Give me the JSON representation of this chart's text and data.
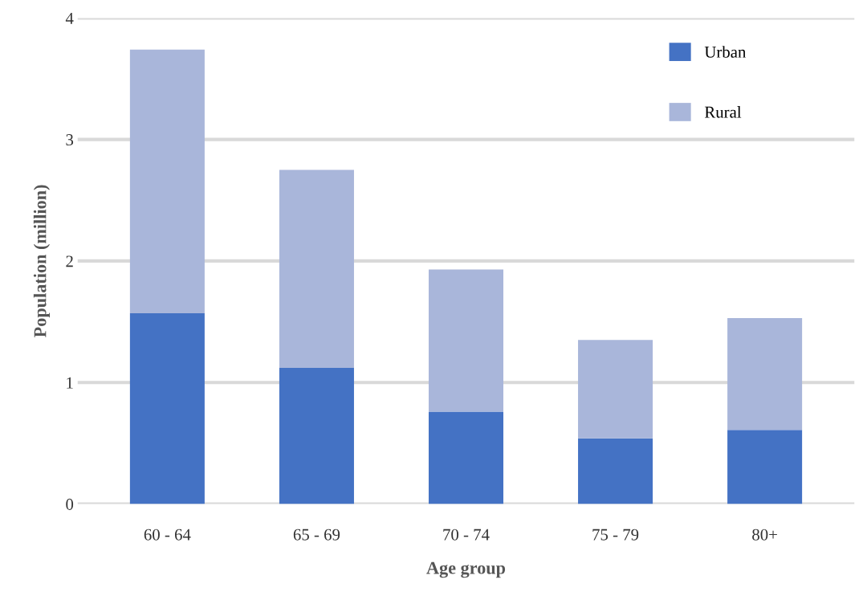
{
  "chart_data": {
    "type": "bar",
    "xlabel": "Age group",
    "ylabel": "Population (million)",
    "categories": [
      "60 - 64",
      "65 - 69",
      "70 - 74",
      "75 - 79",
      "80+"
    ],
    "series": [
      {
        "name": "Urban",
        "color": "#4472c4",
        "values": [
          1.57,
          1.12,
          0.76,
          0.54,
          0.61
        ]
      },
      {
        "name": "Rural",
        "color": "#a9b6da",
        "values": [
          2.17,
          1.63,
          1.17,
          0.81,
          0.92
        ]
      }
    ],
    "stacked": true,
    "ylim": [
      0,
      4
    ],
    "yticks": [
      0,
      1,
      2,
      3,
      4
    ],
    "grid": "y",
    "legend": "top right"
  }
}
